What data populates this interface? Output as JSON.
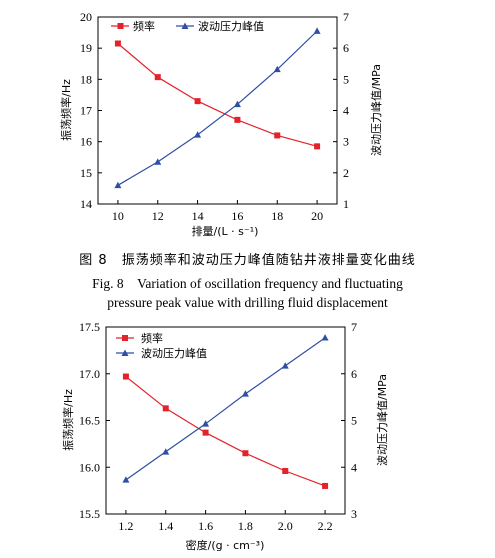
{
  "figure8": {
    "caption_cn": "图 8　振荡频率和波动压力峰值随钻井液排量变化曲线",
    "caption_en_line1": "Fig. 8　Variation of oscillation frequency and fluctuating",
    "caption_en_line2": "pressure peak value with drilling fluid displacement"
  },
  "chart_data": [
    {
      "type": "line",
      "x": [
        10,
        12,
        14,
        16,
        18,
        20
      ],
      "xlabel": "排量/(L · s⁻¹)",
      "ylabel": "振荡频率/Hz",
      "y2label": "波动压力峰值/MPa",
      "xlim": [
        9,
        21
      ],
      "ylim": [
        14,
        20
      ],
      "y2lim": [
        1,
        7
      ],
      "xticks": [
        "10",
        "12",
        "14",
        "16",
        "18",
        "20"
      ],
      "yticks": [
        "14",
        "15",
        "16",
        "17",
        "18",
        "19",
        "20"
      ],
      "y2ticks": [
        "1",
        "2",
        "3",
        "4",
        "5",
        "6",
        "7"
      ],
      "legend_position": "top",
      "grid": false,
      "series": [
        {
          "name": "频率",
          "axis": "left",
          "marker": "square",
          "color": "#e3222a",
          "values": [
            19.15,
            18.07,
            17.3,
            16.7,
            16.2,
            15.85
          ]
        },
        {
          "name": "波动压力峰值",
          "axis": "right",
          "marker": "triangle",
          "color": "#2f4fa5",
          "values": [
            1.6,
            2.35,
            3.22,
            4.2,
            5.32,
            6.55
          ]
        }
      ]
    },
    {
      "type": "line",
      "x": [
        1.2,
        1.4,
        1.6,
        1.8,
        2.0,
        2.2
      ],
      "xlabel": "密度/(g · cm⁻³)",
      "ylabel": "振荡频率/Hz",
      "y2label": "波动压力峰值/MPa",
      "xlim": [
        1.1,
        2.3
      ],
      "ylim": [
        15.5,
        17.5
      ],
      "y2lim": [
        3,
        7
      ],
      "xticks": [
        "1.2",
        "1.4",
        "1.6",
        "1.8",
        "2.0",
        "2.2"
      ],
      "yticks": [
        "15.5",
        "16.0",
        "16.5",
        "17.0",
        "17.5"
      ],
      "y2ticks": [
        "3",
        "4",
        "5",
        "6",
        "7"
      ],
      "legend_position": "top-left",
      "grid": false,
      "series": [
        {
          "name": "频率",
          "axis": "left",
          "marker": "square",
          "color": "#e3222a",
          "values": [
            16.97,
            16.63,
            16.37,
            16.15,
            15.96,
            15.8
          ]
        },
        {
          "name": "波动压力峰值",
          "axis": "right",
          "marker": "triangle",
          "color": "#2f4fa5",
          "values": [
            3.73,
            4.33,
            4.93,
            5.57,
            6.17,
            6.77
          ]
        }
      ]
    }
  ]
}
